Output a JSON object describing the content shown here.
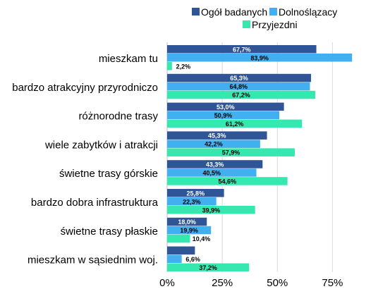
{
  "chart_data": {
    "type": "bar",
    "orientation": "horizontal",
    "categories": [
      "mieszkam tu",
      "bardzo atrakcyjny przyrodniczo",
      "różnorodne trasy",
      "wiele zabytków i atrakcji",
      "świetne trasy górskie",
      "bardzo dobra infrastruktura",
      "świetne trasy płaskie",
      "mieszkam w sąsiednim woj."
    ],
    "series": [
      {
        "name": "Ogół badanych",
        "color": "#2f5597",
        "values": [
          67.7,
          65.3,
          53.0,
          45.3,
          43.3,
          25.8,
          18.0,
          12.6
        ],
        "labels": [
          "67,7%",
          "65,3%",
          "53,0%",
          "45,3%",
          "43,3%",
          "25,8%",
          "18,0%",
          "12,6%"
        ],
        "label_color": "#ffffff"
      },
      {
        "name": "Dolnoślązacy",
        "color": "#42b0f0",
        "values": [
          83.9,
          64.8,
          50.9,
          42.2,
          40.5,
          22.3,
          19.9,
          6.6
        ],
        "labels": [
          "83,9%",
          "64,8%",
          "50,9%",
          "42,2%",
          "40,5%",
          "22,3%",
          "19,9%",
          "6,6%"
        ],
        "label_color": "#000000"
      },
      {
        "name": "Przyjezdni",
        "color": "#35e8b0",
        "values": [
          2.2,
          67.2,
          61.2,
          57.9,
          54.6,
          39.9,
          10.4,
          37.2
        ],
        "labels": [
          "2,2%",
          "67,2%",
          "61,2%",
          "57,9%",
          "54,6%",
          "39,9%",
          "10,4%",
          "37,2%"
        ],
        "label_color": "#000000"
      }
    ],
    "x_ticks": [
      0,
      25,
      50,
      75
    ],
    "x_tick_labels": [
      "0%",
      "25%",
      "50%",
      "75%"
    ],
    "xlim": [
      0,
      85
    ],
    "grid": true,
    "legend_position": "top-right",
    "title": "",
    "xlabel": "",
    "ylabel": ""
  }
}
